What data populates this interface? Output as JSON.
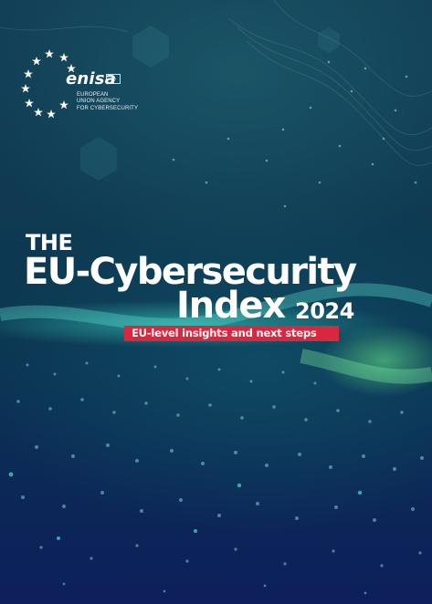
{
  "organization": {
    "name": "enisa",
    "subtitle_lines": [
      "EUROPEAN",
      "UNION AGENCY",
      "FOR CYBERSECURITY"
    ],
    "logo_star_color": "#ffffff",
    "flag_icon": "eu-flag-icon"
  },
  "cover": {
    "title_prefix": "THE",
    "title_main": "EU-Cybersecurity",
    "title_second": "Index",
    "year": "2024",
    "subtitle": "EU-level insights and next steps"
  },
  "colors": {
    "banner": "#d6283f",
    "background_top": "#123e55",
    "background_bottom": "#0d1f5c",
    "glow": "#3fd8c0"
  }
}
